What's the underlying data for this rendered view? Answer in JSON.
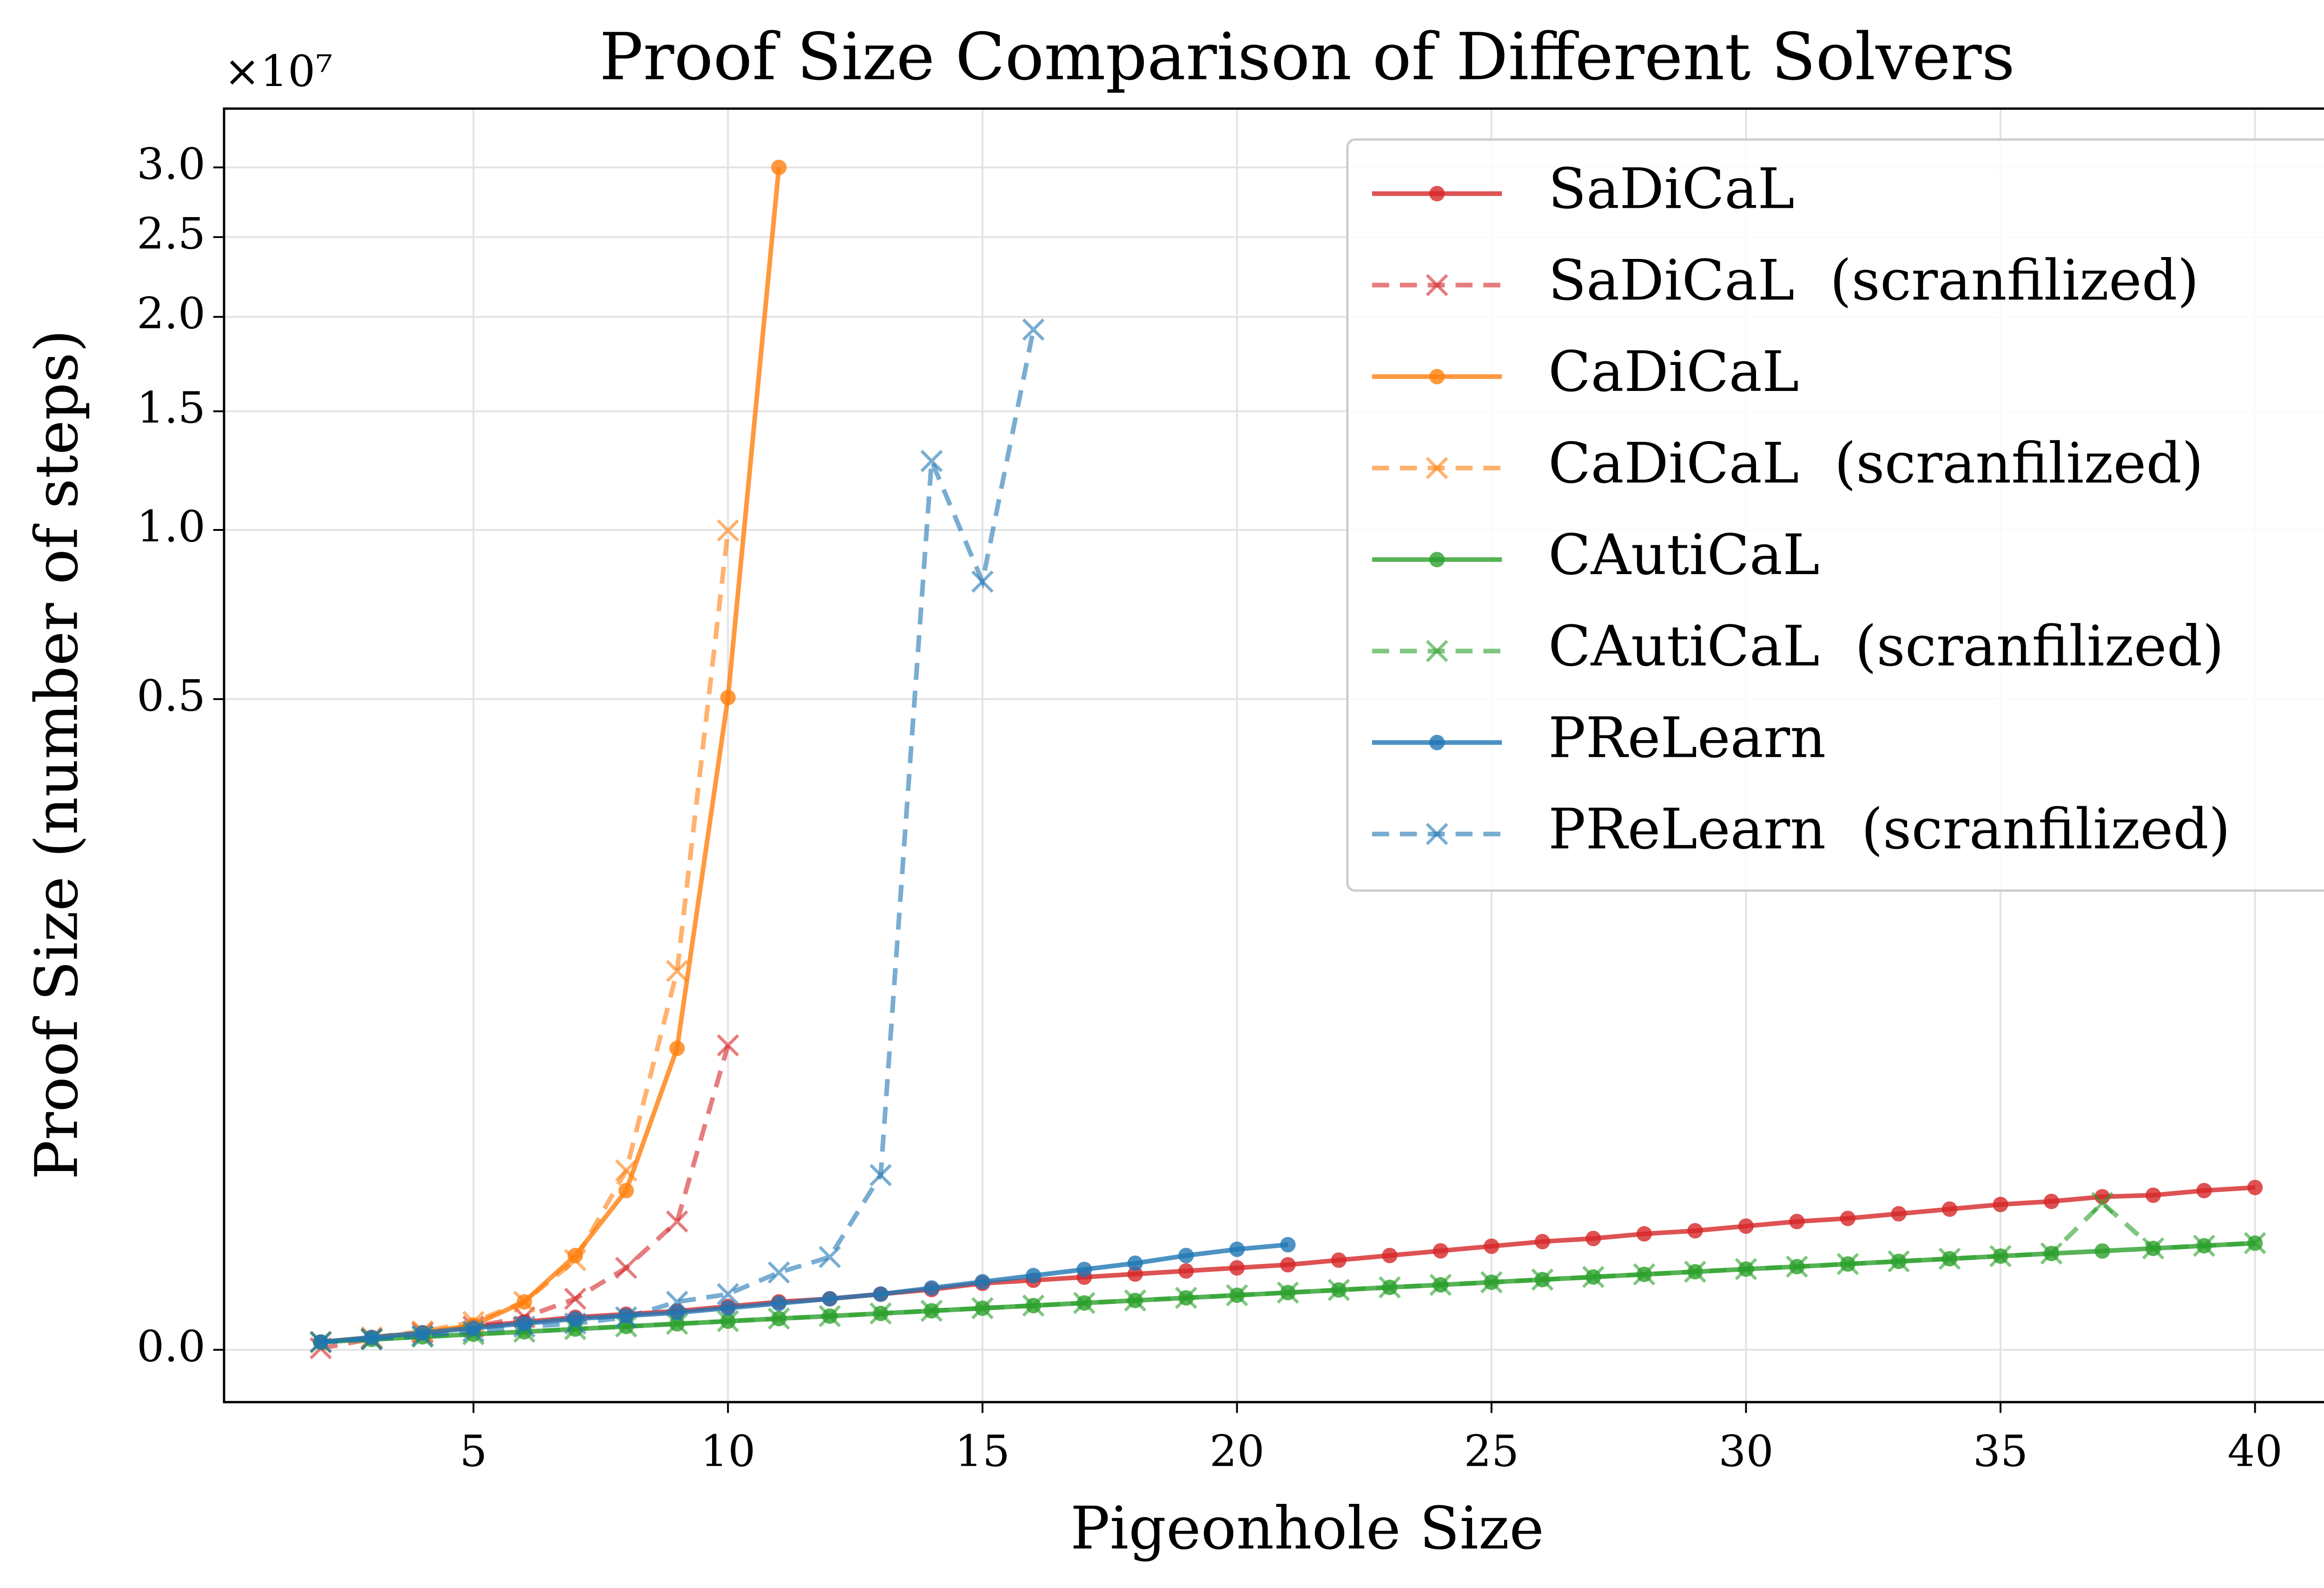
{
  "chart_data": {
    "type": "line",
    "title": "Proof Size Comparison of Different Solvers",
    "x_label": "Pigeonhole Size",
    "y_label": "Proof Size (number of steps)",
    "y_offset_label": "×10⁷",
    "yscale": "cbrt",
    "grid": true,
    "legend_loc": "upper right",
    "xlim": [
      0.1,
      41.9
    ],
    "ylim": [
      -0.00026,
      3.47
    ],
    "xticks": [
      5,
      10,
      15,
      20,
      25,
      30,
      35,
      40
    ],
    "yticks": [
      {
        "value": 0,
        "label": "0.0"
      },
      0.5,
      {
        "value": 1,
        "label": "1.0"
      },
      1.5,
      {
        "value": 2,
        "label": "2.0"
      },
      2.5,
      {
        "value": 3,
        "label": "3.0"
      }
    ],
    "series": [
      {
        "name": "SaDiCaL",
        "color": "#d62728",
        "linestyle": "solid",
        "marker": "o",
        "x": [
          2,
          3,
          4,
          5,
          6,
          7,
          8,
          9,
          10,
          11,
          12,
          13,
          14,
          15,
          16,
          17,
          18,
          19,
          20,
          21,
          22,
          23,
          24,
          25,
          26,
          27,
          28,
          29,
          30,
          31,
          32,
          33,
          34,
          35,
          36,
          37,
          38,
          39,
          40
        ],
        "values": [
          8.4e-07,
          3.43e-06,
          8.9e-06,
          2.26e-05,
          3.91e-05,
          6.21e-05,
          8.15e-05,
          0.000105,
          0.000147,
          0.0002,
          0.000241,
          0.000313,
          0.000398,
          0.000533,
          0.000611,
          0.000696,
          0.000789,
          0.000889,
          0.000998,
          0.001115,
          0.001308,
          0.001521,
          0.001757,
          0.002016,
          0.002299,
          0.002502,
          0.002828,
          0.00306,
          0.003432,
          0.003832,
          0.004116,
          0.004567,
          0.005051,
          0.005567,
          0.00593,
          0.006503,
          0.006702,
          0.007324,
          0.007759
        ]
      },
      {
        "name": "SaDiCaL  (scranfilized)",
        "color": "#d62728",
        "linestyle": "dashed",
        "marker": "x",
        "x": [
          2,
          3,
          4,
          5,
          6,
          7,
          8,
          9,
          10
        ],
        "values": [
          6.7e-09,
          2.3e-06,
          8.9e-06,
          2.26e-05,
          6.21e-05,
          0.000241,
          0.000998,
          0.003832,
          0.0512
        ]
      },
      {
        "name": "CaDiCaL",
        "color": "#ff7f0e",
        "linestyle": "solid",
        "marker": "o",
        "x": [
          2,
          3,
          4,
          5,
          6,
          7,
          8,
          9,
          10,
          11
        ],
        "values": [
          8.4e-07,
          3.43e-06,
          8.9e-06,
          2.75e-05,
          0.0002,
          0.001521,
          0.007324,
          0.0497,
          0.5036,
          3.0
        ]
      },
      {
        "name": "CaDiCaL  (scranfilized)",
        "color": "#ff7f0e",
        "linestyle": "dashed",
        "marker": "x",
        "x": [
          2,
          3,
          4,
          5,
          6,
          7,
          8,
          9,
          10
        ],
        "values": [
          8.4e-07,
          3.43e-06,
          1.16e-05,
          3.91e-05,
          0.0002,
          0.001308,
          0.01046,
          0.0986,
          0.998
        ]
      },
      {
        "name": "CAutiCaL",
        "color": "#2ca02c",
        "linestyle": "solid",
        "marker": "o",
        "x": [
          2,
          3,
          4,
          5,
          6,
          7,
          8,
          9,
          10,
          11,
          12,
          13,
          14,
          15,
          16,
          17,
          18,
          19,
          20,
          21,
          22,
          23,
          24,
          25,
          26,
          27,
          28,
          29,
          30,
          31,
          32,
          33,
          34,
          35,
          36,
          37,
          38,
          39,
          40
        ],
        "values": [
          8.4e-07,
          2.02e-06,
          3.97e-06,
          6.9e-06,
          1.07e-05,
          1.61e-05,
          2.31e-05,
          3.18e-05,
          4.24e-05,
          5.52e-05,
          6.94e-05,
          8.7e-05,
          0.0001073,
          0.0001305,
          0.0001568,
          0.0001864,
          0.0002176,
          0.0002542,
          0.0002948,
          0.0003395,
          0.0003885,
          0.0004419,
          0.0004966,
          0.0005593,
          0.0006272,
          0.0007003,
          0.0007789,
          0.0008632,
          0.0009533,
          0.001044,
          0.001146,
          0.001254,
          0.00137,
          0.001492,
          0.001621,
          0.001749,
          0.001892,
          0.002043,
          0.002202
        ]
      },
      {
        "name": "CAutiCaL  (scranfilized)",
        "color": "#2ca02c",
        "linestyle": "dashed",
        "marker": "x",
        "x": [
          2,
          3,
          4,
          5,
          6,
          7,
          8,
          9,
          10,
          11,
          12,
          13,
          14,
          15,
          16,
          17,
          18,
          19,
          20,
          21,
          22,
          23,
          24,
          25,
          26,
          27,
          28,
          29,
          30,
          31,
          32,
          33,
          34,
          35,
          36,
          37,
          38,
          39,
          40
        ],
        "values": [
          8.4e-07,
          2.02e-06,
          3.97e-06,
          6.9e-06,
          1.07e-05,
          1.61e-05,
          2.31e-05,
          3.18e-05,
          4.24e-05,
          5.52e-05,
          6.94e-05,
          8.7e-05,
          0.0001073,
          0.0001305,
          0.0001568,
          0.0001864,
          0.0002176,
          0.0002542,
          0.0002948,
          0.0003395,
          0.0003885,
          0.0004419,
          0.0004966,
          0.0005593,
          0.0006272,
          0.0007003,
          0.0007789,
          0.0008632,
          0.0009533,
          0.001044,
          0.001146,
          0.001254,
          0.00137,
          0.001492,
          0.001621,
          0.005746,
          0.001892,
          0.002043,
          0.002202
        ]
      },
      {
        "name": "PReLearn",
        "color": "#1f77b4",
        "linestyle": "solid",
        "marker": "o",
        "x": [
          2,
          3,
          4,
          5,
          6,
          7,
          8,
          9,
          10,
          11,
          12,
          13,
          14,
          15,
          16,
          17,
          18,
          19,
          20,
          21
        ],
        "values": [
          8.4e-07,
          3.43e-06,
          8.9e-06,
          1.84e-05,
          3.29e-05,
          5.36e-05,
          7.14e-05,
          9.27e-05,
          0.0001319,
          0.000181,
          0.000241,
          0.000313,
          0.000429,
          0.000571,
          0.000741,
          0.000942,
          0.001177,
          0.001521,
          0.001841,
          0.002107
        ]
      },
      {
        "name": "PReLearn  (scranfilized)",
        "color": "#1f77b4",
        "linestyle": "dashed",
        "marker": "x",
        "x": [
          2,
          3,
          4,
          5,
          6,
          7,
          8,
          9,
          10,
          11,
          12,
          13,
          14,
          15,
          16
        ],
        "values": [
          8.4e-07,
          2.3e-06,
          4.9e-06,
          1.16e-05,
          2.26e-05,
          3.29e-05,
          6.21e-05,
          0.0002,
          0.000313,
          0.000838,
          0.001448,
          0.00967,
          1.274,
          0.8227,
          1.927
        ]
      }
    ]
  }
}
